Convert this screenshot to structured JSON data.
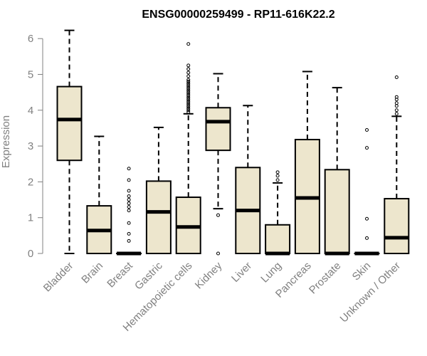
{
  "chart_data": {
    "type": "boxplot",
    "title": "ENSG00000259499 - RP11-616K22.2",
    "ylabel": "Expression",
    "xlabel": "",
    "ylim": [
      0,
      6.3
    ],
    "yticks": [
      0,
      1,
      2,
      3,
      4,
      5,
      6
    ],
    "grid": false,
    "legend": "none",
    "colors": {
      "box_fill": "#EDE6CD",
      "stroke": "#000000",
      "axis_text": "#808080"
    },
    "categories": [
      "Bladder",
      "Brain",
      "Breast",
      "Gastric",
      "Hematopoietic cells",
      "Kidney",
      "Liver",
      "Lung",
      "Pancreas",
      "Prostate",
      "Skin",
      "Unknown / Other"
    ],
    "boxes": [
      {
        "whisker_low": 0.0,
        "q1": 2.6,
        "median": 3.74,
        "q3": 4.66,
        "whisker_high": 6.23,
        "outliers": []
      },
      {
        "whisker_low": 0.0,
        "q1": 0.0,
        "median": 0.64,
        "q3": 1.33,
        "whisker_high": 3.27,
        "outliers": []
      },
      {
        "whisker_low": 0.0,
        "q1": 0.0,
        "median": 0.0,
        "q3": 0.0,
        "whisker_high": 0.0,
        "outliers": [
          0.35,
          0.55,
          0.85,
          1.2,
          1.3,
          1.4,
          1.5,
          1.6,
          1.75,
          2.05,
          2.37
        ]
      },
      {
        "whisker_low": 0.0,
        "q1": 0.0,
        "median": 1.16,
        "q3": 2.02,
        "whisker_high": 3.52,
        "outliers": []
      },
      {
        "whisker_low": 0.0,
        "q1": 0.0,
        "median": 0.74,
        "q3": 1.57,
        "whisker_high": 3.9,
        "outliers": [
          3.95,
          4.0,
          4.05,
          4.1,
          4.15,
          4.2,
          4.25,
          4.3,
          4.35,
          4.4,
          4.45,
          4.5,
          4.55,
          4.6,
          4.65,
          4.7,
          4.75,
          4.8,
          4.85,
          4.95,
          5.05,
          5.15,
          5.25,
          5.85
        ]
      },
      {
        "whisker_low": 1.25,
        "q1": 2.88,
        "median": 3.68,
        "q3": 4.07,
        "whisker_high": 5.02,
        "outliers": [
          0.0,
          1.07
        ]
      },
      {
        "whisker_low": 0.0,
        "q1": 0.0,
        "median": 1.2,
        "q3": 2.4,
        "whisker_high": 4.13,
        "outliers": []
      },
      {
        "whisker_low": 0.0,
        "q1": 0.0,
        "median": 0.0,
        "q3": 0.8,
        "whisker_high": 1.97,
        "outliers": [
          2.05,
          2.17,
          2.27
        ]
      },
      {
        "whisker_low": 0.0,
        "q1": 0.0,
        "median": 1.55,
        "q3": 3.18,
        "whisker_high": 5.08,
        "outliers": []
      },
      {
        "whisker_low": 0.0,
        "q1": 0.0,
        "median": 0.0,
        "q3": 2.34,
        "whisker_high": 4.63,
        "outliers": []
      },
      {
        "whisker_low": 0.0,
        "q1": 0.0,
        "median": 0.0,
        "q3": 0.0,
        "whisker_high": 0.0,
        "outliers": [
          0.43,
          0.97,
          2.95,
          3.45
        ]
      },
      {
        "whisker_low": 0.0,
        "q1": 0.0,
        "median": 0.44,
        "q3": 1.53,
        "whisker_high": 3.83,
        "outliers": [
          3.9,
          4.0,
          4.12,
          4.2,
          4.3,
          4.37,
          4.92
        ]
      }
    ]
  }
}
